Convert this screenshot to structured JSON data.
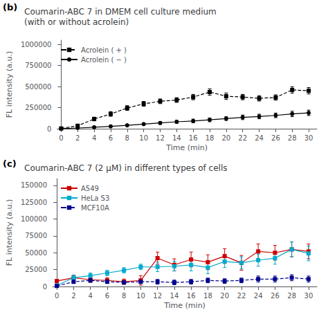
{
  "chart_data": [
    {
      "type": "line",
      "title": "Coumarin-ABC 7 in DMEM cell culture medium\n(with or without acrolein)",
      "annotations": [
        "(b)"
      ],
      "xlabel": "Time (min)",
      "ylabel": "FL intensity (a.u.)",
      "x": [
        0,
        2,
        4,
        6,
        8,
        10,
        12,
        14,
        16,
        18,
        20,
        22,
        24,
        26,
        28,
        30
      ],
      "xlim": [
        -0.5,
        31
      ],
      "xticks": [
        0,
        2,
        4,
        6,
        8,
        10,
        12,
        14,
        16,
        18,
        20,
        22,
        24,
        26,
        28,
        30
      ],
      "ylim": [
        0,
        1050000
      ],
      "yticks": [
        0,
        250000,
        500000,
        750000,
        1000000
      ],
      "grid": false,
      "legend": "upper left",
      "series": [
        {
          "name": "Acrolein ( + )",
          "color": "#000000",
          "marker": "square",
          "line_style": "dashed",
          "values": [
            3000,
            35000,
            115000,
            175000,
            245000,
            295000,
            325000,
            340000,
            375000,
            435000,
            385000,
            375000,
            360000,
            370000,
            460000,
            450000
          ],
          "errors": [
            2000,
            12000,
            22000,
            28000,
            28000,
            28000,
            28000,
            28000,
            32000,
            38000,
            38000,
            32000,
            32000,
            32000,
            38000,
            38000
          ]
        },
        {
          "name": "Acrolein ( − )",
          "color": "#000000",
          "marker": "circle",
          "line_style": "solid",
          "values": [
            1000,
            8000,
            18000,
            28000,
            40000,
            55000,
            68000,
            82000,
            92000,
            105000,
            120000,
            135000,
            145000,
            158000,
            175000,
            188000
          ],
          "errors": [
            1000,
            6000,
            8000,
            9000,
            12000,
            13000,
            17000,
            18000,
            22000,
            22000,
            22000,
            27000,
            27000,
            27000,
            32000,
            32000
          ]
        }
      ]
    },
    {
      "type": "line",
      "title": "Coumarin-ABC 7 (2 μM) in different types of cells",
      "annotations": [
        "(c)"
      ],
      "xlabel": "Time (min)",
      "ylabel": "FL intensity (a.u.)",
      "x": [
        0,
        2,
        4,
        6,
        8,
        10,
        12,
        14,
        16,
        18,
        20,
        22,
        24,
        26,
        28,
        30
      ],
      "xlim": [
        -0.5,
        31
      ],
      "xticks": [
        0,
        2,
        4,
        6,
        8,
        10,
        12,
        14,
        16,
        18,
        20,
        22,
        24,
        26,
        28,
        30
      ],
      "ylim": [
        0,
        160000
      ],
      "yticks": [
        0,
        25000,
        50000,
        75000,
        100000,
        125000,
        150000
      ],
      "grid": false,
      "legend": "upper left",
      "series": [
        {
          "name": "A549",
          "color": "#cc0000",
          "marker": "square",
          "line_style": "solid",
          "values": [
            8000,
            13000,
            10000,
            9000,
            7000,
            9000,
            42000,
            32000,
            40000,
            36000,
            45000,
            35000,
            52000,
            50000,
            55000,
            52000
          ],
          "errors": [
            2500,
            4000,
            4000,
            4000,
            4000,
            7000,
            9000,
            9000,
            11000,
            11000,
            11000,
            11000,
            11000,
            11000,
            11000,
            11000
          ]
        },
        {
          "name": "HeLa S3",
          "color": "#00aacc",
          "marker": "square",
          "line_style": "solid",
          "values": [
            1500,
            13000,
            16000,
            20000,
            24000,
            29000,
            29000,
            30000,
            32000,
            28000,
            37000,
            35000,
            39000,
            42000,
            55000,
            49000
          ],
          "errors": [
            800,
            4000,
            4000,
            4000,
            4000,
            4000,
            7000,
            7000,
            9000,
            9000,
            9000,
            9000,
            9000,
            9000,
            11000,
            11000
          ]
        },
        {
          "name": "MCF10A",
          "color": "#00008b",
          "marker": "square",
          "line_style": "dashed",
          "values": [
            800,
            7000,
            9000,
            7000,
            6000,
            7000,
            7000,
            6000,
            7000,
            9000,
            8000,
            9000,
            11000,
            11000,
            13000,
            11000
          ],
          "errors": [
            400,
            2500,
            2500,
            2500,
            2500,
            2500,
            3500,
            3500,
            3500,
            3500,
            3500,
            3500,
            4500,
            4500,
            4500,
            4500
          ]
        }
      ]
    }
  ]
}
